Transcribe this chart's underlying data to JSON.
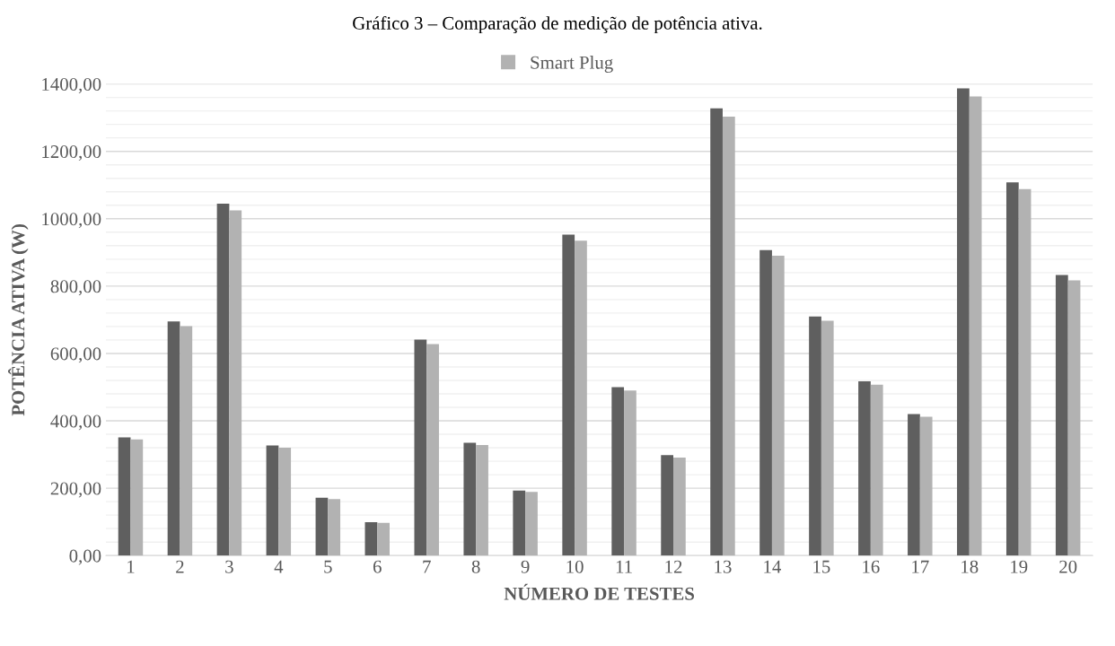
{
  "chart_data": {
    "type": "bar",
    "title": "Gráfico 3 – Comparação de medição de potência ativa.",
    "xlabel": "NÚMERO DE TESTES",
    "ylabel": "POTÊNCIA ATIVA (W)",
    "categories": [
      "1",
      "2",
      "3",
      "4",
      "5",
      "6",
      "7",
      "8",
      "9",
      "10",
      "11",
      "12",
      "13",
      "14",
      "15",
      "16",
      "17",
      "18",
      "19",
      "20"
    ],
    "series": [
      {
        "color": "#5f5f5f",
        "values": [
          351,
          695,
          1045,
          327,
          172,
          99,
          641,
          335,
          193,
          953,
          500,
          298,
          1328,
          907,
          710,
          517,
          420,
          1387,
          1108,
          833
        ]
      },
      {
        "name": "Smart Plug",
        "color": "#b2b2b2",
        "values": [
          345,
          681,
          1025,
          320,
          168,
          97,
          628,
          328,
          189,
          935,
          490,
          291,
          1303,
          890,
          697,
          507,
          412,
          1363,
          1088,
          817
        ]
      }
    ],
    "ylim": [
      0,
      1400
    ],
    "yticks": [
      {
        "value": 0,
        "label": "0,00"
      },
      {
        "value": 40,
        "label": null
      },
      {
        "value": 80,
        "label": null
      },
      {
        "value": 120,
        "label": null
      },
      {
        "value": 160,
        "label": null
      },
      {
        "value": 200,
        "label": "200,00"
      },
      {
        "value": 240,
        "label": null
      },
      {
        "value": 280,
        "label": null
      },
      {
        "value": 320,
        "label": null
      },
      {
        "value": 360,
        "label": null
      },
      {
        "value": 400,
        "label": "400,00"
      },
      {
        "value": 440,
        "label": null
      },
      {
        "value": 480,
        "label": null
      },
      {
        "value": 520,
        "label": null
      },
      {
        "value": 560,
        "label": null
      },
      {
        "value": 600,
        "label": "600,00"
      },
      {
        "value": 640,
        "label": null
      },
      {
        "value": 680,
        "label": null
      },
      {
        "value": 720,
        "label": null
      },
      {
        "value": 760,
        "label": null
      },
      {
        "value": 800,
        "label": "800,00"
      },
      {
        "value": 840,
        "label": null
      },
      {
        "value": 880,
        "label": null
      },
      {
        "value": 920,
        "label": null
      },
      {
        "value": 960,
        "label": null
      },
      {
        "value": 1000,
        "label": "1000,00"
      },
      {
        "value": 1040,
        "label": null
      },
      {
        "value": 1080,
        "label": null
      },
      {
        "value": 1120,
        "label": null
      },
      {
        "value": 1160,
        "label": null
      },
      {
        "value": 1200,
        "label": "1200,00"
      },
      {
        "value": 1240,
        "label": null
      },
      {
        "value": 1280,
        "label": null
      },
      {
        "value": 1320,
        "label": null
      },
      {
        "value": 1360,
        "label": null
      },
      {
        "value": 1400,
        "label": "1400,00"
      }
    ],
    "grid": "y",
    "legend": "top"
  }
}
